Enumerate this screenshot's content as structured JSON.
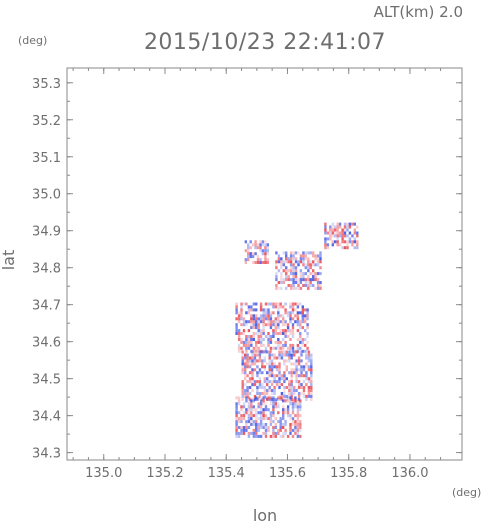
{
  "alt_label": "ALT(km)  2.0",
  "timestamp": "2015/10/23 22:41:07",
  "y_unit": "(deg)",
  "x_unit": "(deg)",
  "chart_data": {
    "type": "heatmap",
    "title": "2015/10/23 22:41:07",
    "xlabel": "lon",
    "ylabel": "lat",
    "xlim": [
      134.88,
      136.17
    ],
    "ylim": [
      34.28,
      35.34
    ],
    "x_ticks": [
      "135.0",
      "135.2",
      "135.4",
      "135.6",
      "135.8",
      "136.0"
    ],
    "y_ticks": [
      "34.3",
      "34.4",
      "34.5",
      "34.6",
      "34.7",
      "34.8",
      "34.9",
      "35.0",
      "35.1",
      "35.2",
      "35.3"
    ],
    "grid": false,
    "colors": {
      "positive": "#e8414a",
      "negative": "#3a4fe0",
      "frame": "#8a8a8a"
    },
    "regions": [
      {
        "lon": [
          135.46,
          135.54
        ],
        "lat": [
          34.81,
          34.87
        ]
      },
      {
        "lon": [
          135.56,
          135.71
        ],
        "lat": [
          34.74,
          34.84
        ]
      },
      {
        "lon": [
          135.72,
          135.83
        ],
        "lat": [
          34.85,
          34.92
        ]
      },
      {
        "lon": [
          135.43,
          135.67
        ],
        "lat": [
          34.57,
          34.7
        ]
      },
      {
        "lon": [
          135.45,
          135.68
        ],
        "lat": [
          34.44,
          34.57
        ]
      },
      {
        "lon": [
          135.43,
          135.64
        ],
        "lat": [
          34.34,
          34.45
        ]
      }
    ]
  }
}
